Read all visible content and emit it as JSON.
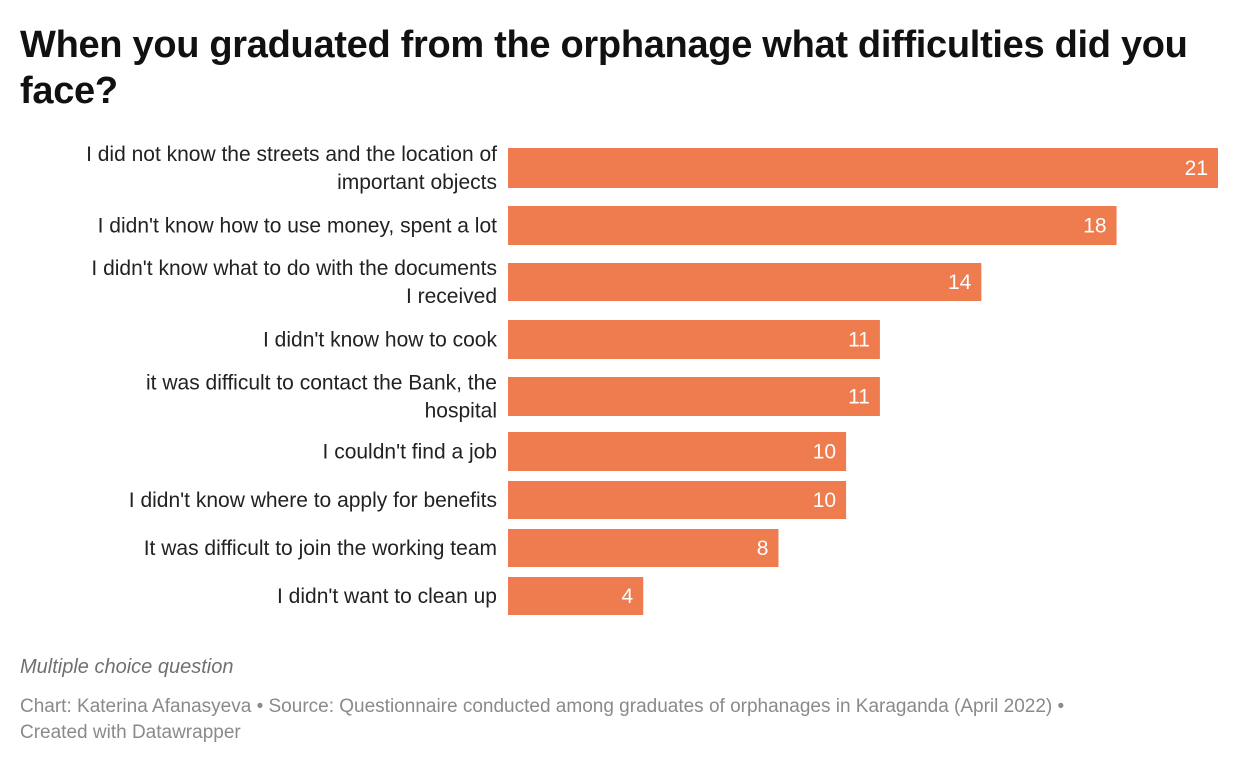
{
  "chart_data": {
    "type": "bar",
    "orientation": "horizontal",
    "title": "When you graduated from the orphanage what difficulties did you face?",
    "categories": [
      [
        "I did not know the streets and the location of",
        "important objects"
      ],
      [
        "I didn't know how to use money, spent a lot"
      ],
      [
        "I didn't know what to do with the documents",
        "I received"
      ],
      [
        "I didn't know how to cook"
      ],
      [
        "it was difficult to contact the Bank, the",
        "hospital"
      ],
      [
        "I couldn't find a job"
      ],
      [
        "I didn't know where to apply for benefits"
      ],
      [
        "It was difficult to join the working team"
      ],
      [
        "I didn't want to clean up"
      ]
    ],
    "values": [
      21,
      18,
      14,
      11,
      11,
      10,
      10,
      8,
      4
    ],
    "xlim": [
      0,
      21
    ],
    "bar_color": "#ef7c4e",
    "value_label_color": "#ffffff",
    "grid": false,
    "xlabel": "",
    "ylabel": ""
  },
  "notes": "Multiple choice question",
  "footer": {
    "line1": "Chart: Katerina Afanasyeva • Source: Questionnaire conducted among graduates of orphanages in Karaganda (April 2022) •",
    "line2": "Created with Datawrapper"
  }
}
